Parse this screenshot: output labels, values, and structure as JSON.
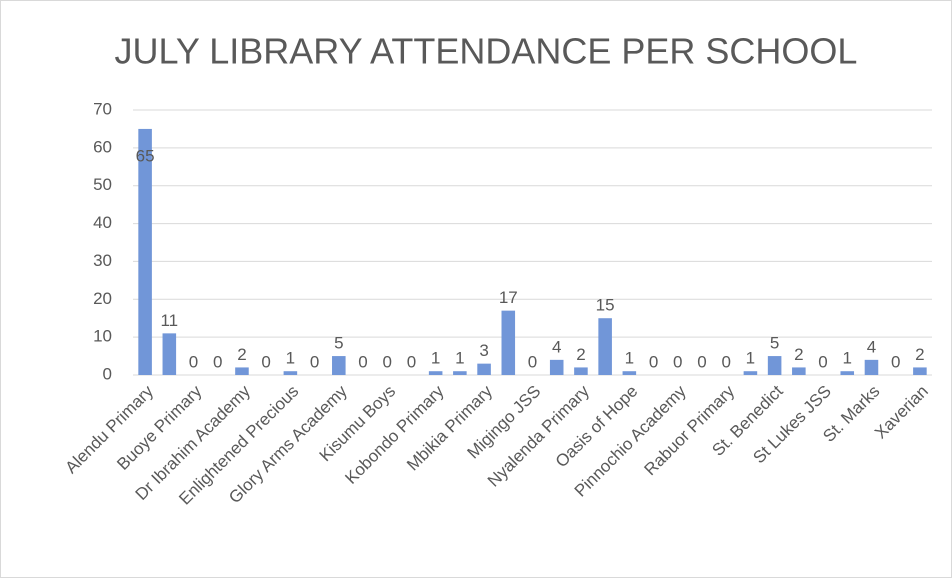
{
  "chart_data": {
    "type": "bar",
    "title": "JULY LIBRARY ATTENDANCE PER SCHOOL",
    "categories": [
      "Alendu Primary",
      null,
      "Buoye Primary",
      null,
      "Dr Ibrahim Academy",
      null,
      "Enlightened Precious",
      null,
      "Glory Arms Academy",
      null,
      "Kisumu Boys",
      null,
      "Kobondo Primary",
      null,
      "Mbikia Primary",
      null,
      "Migingo JSS",
      null,
      "Nyalenda Primary",
      null,
      "Oasis of Hope",
      null,
      "Pinnochio Academy",
      null,
      "Rabuor Primary",
      null,
      "St. Benedict",
      null,
      "St Lukes JSS",
      null,
      "St. Marks",
      null,
      "Xaverian"
    ],
    "values": [
      65,
      11,
      0,
      0,
      2,
      0,
      1,
      0,
      5,
      0,
      0,
      0,
      1,
      1,
      3,
      17,
      0,
      4,
      2,
      15,
      1,
      0,
      0,
      0,
      0,
      1,
      5,
      2,
      0,
      1,
      4,
      0,
      2
    ],
    "color": "#7196d8",
    "ylim": [
      0,
      70
    ],
    "yticks": [
      0,
      10,
      20,
      30,
      40,
      50,
      60,
      70
    ],
    "grid": true
  }
}
